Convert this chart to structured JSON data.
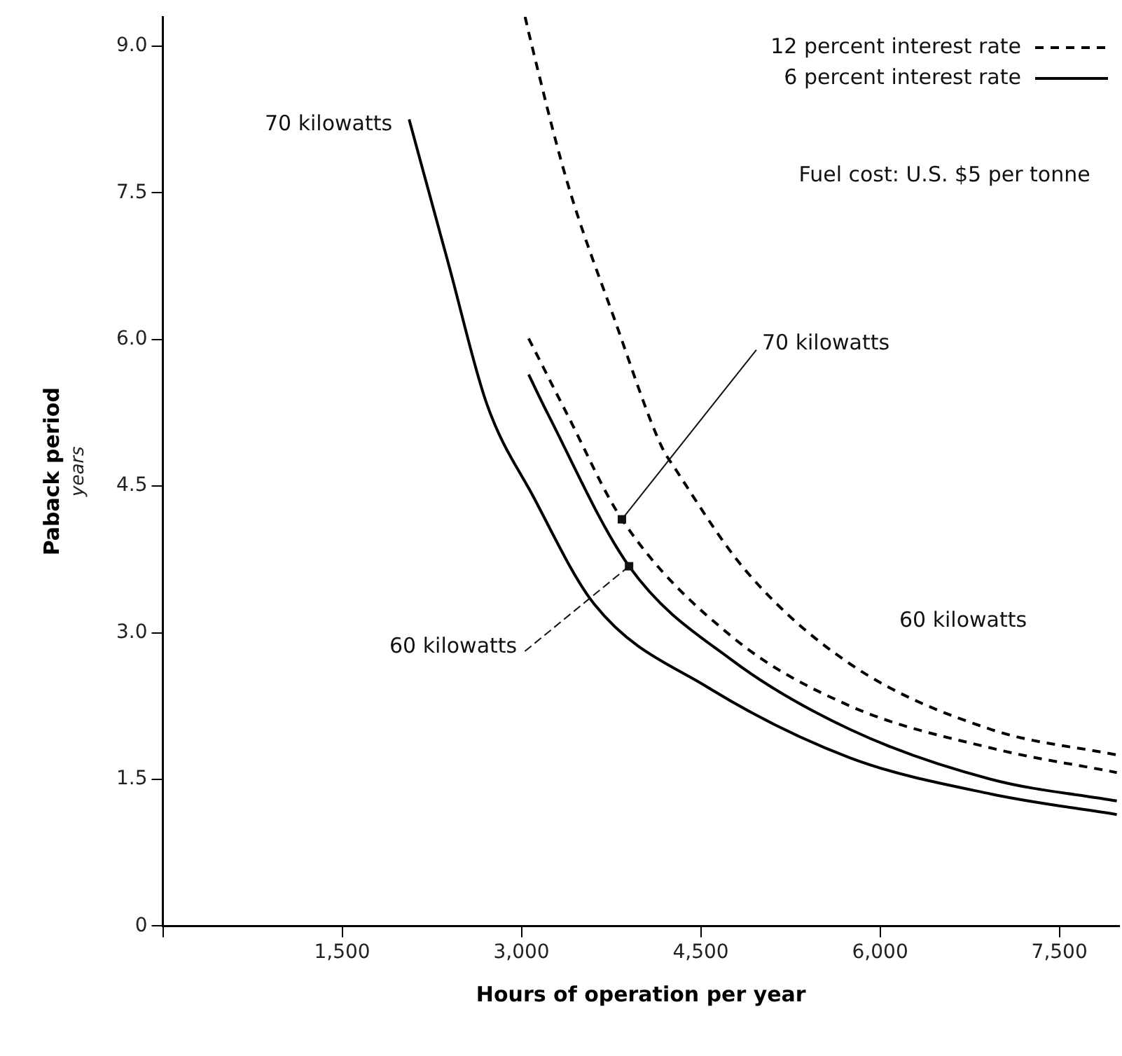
{
  "chart_data": {
    "type": "line",
    "xlabel": "Hours of operation per year",
    "ylabel": "Paback period",
    "subtitle": "years",
    "xlim": [
      0,
      8000
    ],
    "ylim": [
      0,
      9.3
    ],
    "xticks": [
      {
        "value": 0,
        "label": null
      },
      {
        "value": 1500,
        "label": "1,500"
      },
      {
        "value": 3000,
        "label": "3,000"
      },
      {
        "value": 4500,
        "label": "4,500"
      },
      {
        "value": 6000,
        "label": "6,000"
      },
      {
        "value": 7500,
        "label": "7,500"
      }
    ],
    "yticks": [
      0,
      {
        "value": 1.5,
        "label": "1.5"
      },
      {
        "value": 3,
        "label": "3.0"
      },
      {
        "value": 4.5,
        "label": "4.5"
      },
      {
        "value": 6,
        "label": "6.0"
      },
      {
        "value": 7.5,
        "label": "7.5"
      },
      {
        "value": 9,
        "label": "9.0"
      }
    ],
    "grid": false,
    "legend": "top right",
    "marker": "none",
    "series": [
      {
        "name": "12 percent interest rate",
        "color": "#000000",
        "line_style": "dashed",
        "x": [
          3030,
          3070,
          3380,
          3780,
          4170,
          4290,
          4880,
          5750,
          6930,
          7980
        ],
        "values": [
          9.3,
          9.09,
          7.62,
          6.2,
          4.91,
          4.67,
          3.63,
          2.68,
          2.01,
          1.75
        ]
      },
      {
        "color": "#000000",
        "line_style": "dashed",
        "x": [
          3060,
          3380,
          3840,
          4760,
          5750,
          6930,
          7980
        ],
        "values": [
          6.01,
          5.24,
          4.16,
          2.96,
          2.25,
          1.82,
          1.57
        ]
      },
      {
        "name": "6 percent interest rate",
        "color": "#000000",
        "line_style": "solid",
        "x": [
          2060,
          2390,
          2710,
          3100,
          3610,
          4560,
          5750,
          6930,
          7980
        ],
        "values": [
          8.25,
          6.77,
          5.34,
          4.39,
          3.29,
          2.44,
          1.72,
          1.35,
          1.14
        ]
      },
      {
        "color": "#000000",
        "line_style": "solid",
        "x": [
          3060,
          3220,
          3900,
          4760,
          5750,
          6930,
          7980
        ],
        "values": [
          5.64,
          5.24,
          3.68,
          2.72,
          2.01,
          1.5,
          1.28
        ]
      }
    ],
    "annotations": [
      {
        "text": "70 kilowatts",
        "x": 2060,
        "y": 8.25
      },
      {
        "text": "70 kilowatts",
        "x": 3840,
        "y": 4.16
      },
      {
        "text": "60 kilowatts",
        "x": 3900,
        "y": 3.68
      },
      "60 kilowatts",
      "Fuel cost: U.S. $5 per tonne"
    ]
  }
}
